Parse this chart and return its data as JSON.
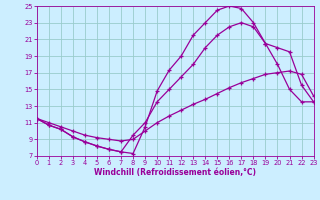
{
  "bg_color": "#cceeff",
  "grid_color": "#99cccc",
  "line_color": "#990099",
  "xlabel": "Windchill (Refroidissement éolien,°C)",
  "xlim": [
    0,
    23
  ],
  "ylim": [
    7,
    25
  ],
  "xticks": [
    0,
    1,
    2,
    3,
    4,
    5,
    6,
    7,
    8,
    9,
    10,
    11,
    12,
    13,
    14,
    15,
    16,
    17,
    18,
    19,
    20,
    21,
    22,
    23
  ],
  "yticks": [
    7,
    9,
    11,
    13,
    15,
    17,
    19,
    21,
    23,
    25
  ],
  "line1_x": [
    0,
    1,
    2,
    3,
    4,
    5,
    6,
    7,
    8,
    9,
    10,
    11,
    12,
    13,
    14,
    15,
    16,
    17,
    18,
    19,
    20,
    21,
    22,
    23
  ],
  "line1_y": [
    11.5,
    10.7,
    10.2,
    9.3,
    8.7,
    8.2,
    7.8,
    7.5,
    7.3,
    10.5,
    14.8,
    17.3,
    19.0,
    21.5,
    23.0,
    24.5,
    25.0,
    24.7,
    23.0,
    20.5,
    18.0,
    15.0,
    13.5,
    13.5
  ],
  "line2_x": [
    0,
    1,
    2,
    3,
    4,
    5,
    6,
    7,
    8,
    9,
    10,
    11,
    12,
    13,
    14,
    15,
    16,
    17,
    18,
    19,
    20,
    21,
    22,
    23
  ],
  "line2_y": [
    11.5,
    10.7,
    10.2,
    9.3,
    8.7,
    8.2,
    7.8,
    7.5,
    9.5,
    11.0,
    13.5,
    15.0,
    16.5,
    18.0,
    20.0,
    21.5,
    22.5,
    23.0,
    22.5,
    20.5,
    20.0,
    19.5,
    15.5,
    13.5
  ],
  "line3_x": [
    0,
    1,
    2,
    3,
    4,
    5,
    6,
    7,
    8,
    9,
    10,
    11,
    12,
    13,
    14,
    15,
    16,
    17,
    18,
    19,
    20,
    21,
    22,
    23
  ],
  "line3_y": [
    11.5,
    11.0,
    10.5,
    10.0,
    9.5,
    9.2,
    9.0,
    8.8,
    9.0,
    10.0,
    11.0,
    11.8,
    12.5,
    13.2,
    13.8,
    14.5,
    15.2,
    15.8,
    16.3,
    16.8,
    17.0,
    17.2,
    16.8,
    14.2
  ]
}
